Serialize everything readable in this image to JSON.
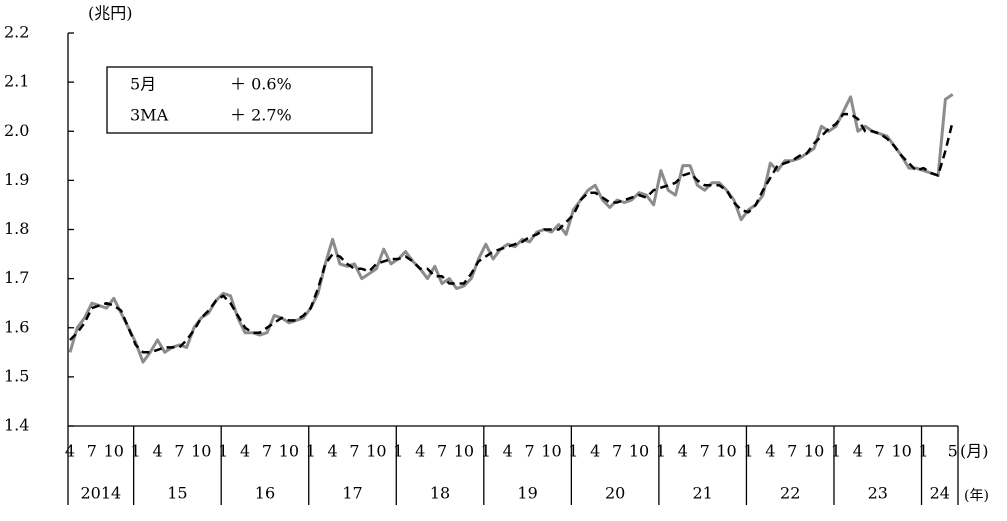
{
  "chart_data": {
    "type": "line",
    "y_unit": "(兆円)",
    "x_unit": "(月)",
    "year_unit": "(年)",
    "categories": [
      "4",
      null,
      null,
      "7",
      null,
      null,
      "10",
      null,
      null,
      "1",
      null,
      null,
      "4",
      null,
      null,
      "7",
      null,
      null,
      "10",
      null,
      null,
      "1",
      null,
      null,
      "4",
      null,
      null,
      "7",
      null,
      null,
      "10",
      null,
      null,
      "1",
      null,
      null,
      "4",
      null,
      null,
      "7",
      null,
      null,
      "10",
      null,
      null,
      "1",
      null,
      null,
      "4",
      null,
      null,
      "7",
      null,
      null,
      "10",
      null,
      null,
      "1",
      null,
      null,
      "4",
      null,
      null,
      "7",
      null,
      null,
      "10",
      null,
      null,
      "1",
      null,
      null,
      "4",
      null,
      null,
      "7",
      null,
      null,
      "10",
      null,
      null,
      "1",
      null,
      null,
      "4",
      null,
      null,
      "7",
      null,
      null,
      "10",
      null,
      null,
      "1",
      null,
      null,
      "4",
      null,
      null,
      "7",
      null,
      null,
      "10",
      null,
      null,
      "1",
      null,
      null,
      "4",
      null,
      null,
      "7",
      null,
      null,
      "10",
      null,
      null,
      "1",
      null,
      null,
      null,
      "5"
    ],
    "years": [
      "2014",
      "15",
      "16",
      "17",
      "18",
      "19",
      "20",
      "21",
      "22",
      "23",
      "24"
    ],
    "series": [
      {
        "color": "#8c8c8c",
        "dash": false,
        "values": [
          1.55,
          1.6,
          1.62,
          1.65,
          1.645,
          1.64,
          1.66,
          1.63,
          1.6,
          1.57,
          1.53,
          1.55,
          1.575,
          1.55,
          1.56,
          1.565,
          1.56,
          1.6,
          1.62,
          1.63,
          1.655,
          1.67,
          1.665,
          1.62,
          1.59,
          1.59,
          1.585,
          1.59,
          1.625,
          1.62,
          1.61,
          1.615,
          1.62,
          1.64,
          1.67,
          1.73,
          1.78,
          1.73,
          1.725,
          1.73,
          1.7,
          1.71,
          1.72,
          1.76,
          1.73,
          1.74,
          1.755,
          1.735,
          1.72,
          1.7,
          1.725,
          1.69,
          1.7,
          1.68,
          1.685,
          1.7,
          1.74,
          1.77,
          1.74,
          1.76,
          1.77,
          1.765,
          1.78,
          1.775,
          1.795,
          1.8,
          1.795,
          1.81,
          1.79,
          1.84,
          1.86,
          1.88,
          1.89,
          1.86,
          1.845,
          1.86,
          1.855,
          1.86,
          1.875,
          1.87,
          1.85,
          1.92,
          1.88,
          1.87,
          1.93,
          1.93,
          1.89,
          1.88,
          1.895,
          1.895,
          1.88,
          1.86,
          1.82,
          1.84,
          1.85,
          1.87,
          1.935,
          1.92,
          1.94,
          1.94,
          1.945,
          1.955,
          1.965,
          2.01,
          2.0,
          2.01,
          2.04,
          2.07,
          2.0,
          2.01,
          2.0,
          1.995,
          1.99,
          1.97,
          1.95,
          1.925,
          1.925,
          1.92,
          1.915,
          1.91,
          2.065,
          2.075
        ]
      },
      {
        "color": "#000000",
        "dash": true,
        "values": [
          1.575,
          1.59,
          1.61,
          1.64,
          1.645,
          1.65,
          1.645,
          1.635,
          1.6,
          1.565,
          1.55,
          1.55,
          1.555,
          1.56,
          1.56,
          1.56,
          1.575,
          1.595,
          1.62,
          1.635,
          1.655,
          1.665,
          1.65,
          1.625,
          1.6,
          1.59,
          1.59,
          1.6,
          1.61,
          1.62,
          1.615,
          1.615,
          1.625,
          1.64,
          1.68,
          1.73,
          1.75,
          1.745,
          1.73,
          1.72,
          1.72,
          1.715,
          1.73,
          1.735,
          1.74,
          1.74,
          1.745,
          1.735,
          1.72,
          1.72,
          1.705,
          1.705,
          1.69,
          1.69,
          1.69,
          1.71,
          1.735,
          1.745,
          1.755,
          1.76,
          1.765,
          1.77,
          1.775,
          1.785,
          1.79,
          1.8,
          1.8,
          1.8,
          1.815,
          1.83,
          1.86,
          1.875,
          1.875,
          1.865,
          1.855,
          1.855,
          1.86,
          1.865,
          1.87,
          1.865,
          1.88,
          1.885,
          1.89,
          1.895,
          1.91,
          1.915,
          1.9,
          1.89,
          1.89,
          1.89,
          1.88,
          1.855,
          1.84,
          1.835,
          1.85,
          1.88,
          1.905,
          1.93,
          1.935,
          1.94,
          1.95,
          1.955,
          1.975,
          1.99,
          2.005,
          2.015,
          2.035,
          2.035,
          2.025,
          2.0,
          2.0,
          1.995,
          1.985,
          1.97,
          1.95,
          1.935,
          1.92,
          1.925,
          1.915,
          1.91,
          1.96,
          2.02
        ]
      }
    ],
    "ylim": [
      1.4,
      2.2
    ],
    "yticks": [
      1.4,
      1.5,
      1.6,
      1.7,
      1.8,
      1.9,
      {
        "value": 2.0,
        "label": "2.0"
      },
      2.1,
      2.2
    ],
    "legend_box": [
      [
        "5月",
        "＋ 0.6%"
      ],
      [
        "3MA",
        "＋ 2.7%"
      ]
    ]
  }
}
